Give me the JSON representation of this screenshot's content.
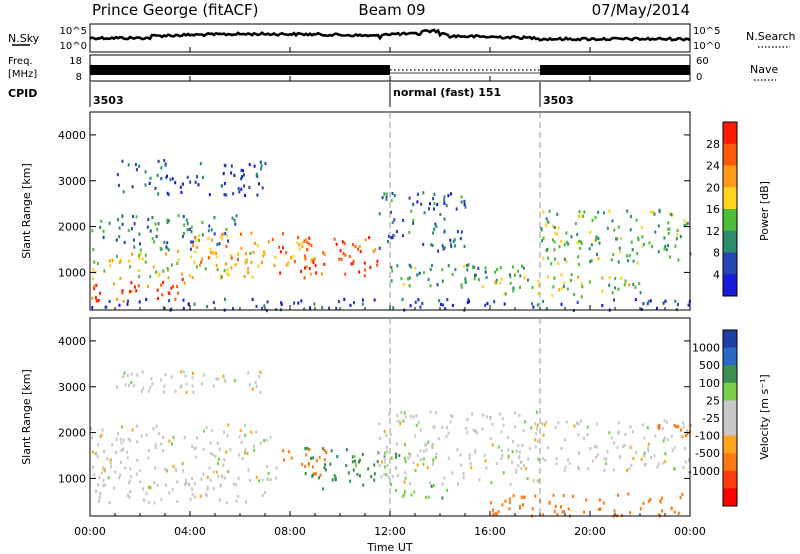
{
  "header": {
    "station": "Prince George (fitACF)",
    "beam": "Beam 09",
    "date": "07/May/2014"
  },
  "strip_labels": {
    "nsky": "N.Sky",
    "nsearch": "N.Search",
    "freq_line1": "Freq.",
    "freq_line2": "[MHz]",
    "nave": "Nave",
    "cpid": "CPID",
    "noise_top_exp": "10^5",
    "noise_bottom_exp": "10^0",
    "freq_top": "18",
    "freq_bottom": "8",
    "nave_top": "60",
    "nave_bottom": "0"
  },
  "cpid_segments": [
    {
      "label": "3503",
      "start_hour": 0,
      "end_hour": 12
    },
    {
      "label": "normal (fast) 151",
      "start_hour": 12,
      "end_hour": 18
    },
    {
      "label": "3503",
      "start_hour": 18,
      "end_hour": 24
    }
  ],
  "colors": {
    "power": [
      "#1a1adc",
      "#2846b4",
      "#2e8c6e",
      "#4fbd3a",
      "#ffd21e",
      "#ff9b14",
      "#ff5a0a",
      "#ff1a00"
    ],
    "velocity": [
      "#1f3ea8",
      "#2868c8",
      "#3d8f4e",
      "#7ad04a",
      "#c8c8c8",
      "#c8c8c8",
      "#ffa51e",
      "#ff7814",
      "#ff3c0a",
      "#ff0000"
    ]
  },
  "chart_data": [
    {
      "type": "heatmap",
      "title": "",
      "xlabel": "Time UT",
      "ylabel": "Slant Range [km]",
      "xlim": [
        0,
        24
      ],
      "ylim": [
        180,
        4500
      ],
      "x_ticks": [
        "00:00",
        "04:00",
        "08:00",
        "12:00",
        "16:00",
        "20:00",
        "00:00"
      ],
      "y_ticks": [
        1000,
        2000,
        3000,
        4000
      ],
      "grid": false,
      "colorbar": {
        "label": "Power [dB]",
        "min": 0,
        "max": 32,
        "tick_labels": [
          "4",
          "8",
          "12",
          "16",
          "20",
          "24",
          "28"
        ]
      },
      "bands": [
        {
          "t0": 0,
          "t1": 4,
          "r0": 400,
          "r1": 900,
          "value": 27
        },
        {
          "t0": 0,
          "t1": 7,
          "r0": 900,
          "r1": 1500,
          "value": 18
        },
        {
          "t0": 0,
          "t1": 6,
          "r0": 1500,
          "r1": 2300,
          "value": 10
        },
        {
          "t0": 4,
          "t1": 9,
          "r0": 1100,
          "r1": 1900,
          "value": 22
        },
        {
          "t0": 7.5,
          "t1": 11.5,
          "r0": 900,
          "r1": 1800,
          "value": 27
        },
        {
          "t0": 1,
          "t1": 7,
          "r0": 2700,
          "r1": 3500,
          "value": 6
        },
        {
          "t0": 11.5,
          "t1": 15,
          "r0": 1500,
          "r1": 2800,
          "value": 8
        },
        {
          "t0": 12,
          "t1": 18,
          "r0": 700,
          "r1": 1200,
          "value": 12
        },
        {
          "t0": 18,
          "t1": 24,
          "r0": 1200,
          "r1": 2400,
          "value": 13
        },
        {
          "t0": 16,
          "t1": 22,
          "r0": 500,
          "r1": 1000,
          "value": 16
        },
        {
          "t0": 0,
          "t1": 24,
          "r0": 200,
          "r1": 450,
          "value": 5
        }
      ]
    },
    {
      "type": "heatmap",
      "title": "",
      "xlabel": "Time UT",
      "ylabel": "Slant Range [km]",
      "xlim": [
        0,
        24
      ],
      "ylim": [
        180,
        4500
      ],
      "x_ticks": [
        "00:00",
        "04:00",
        "08:00",
        "12:00",
        "16:00",
        "20:00",
        "00:00"
      ],
      "y_ticks": [
        1000,
        2000,
        3000,
        4000
      ],
      "grid": false,
      "colorbar": {
        "label": "Velocity [m s⁻¹]",
        "tick_labels": [
          "1000",
          "500",
          "100",
          "25",
          "-25",
          "-100",
          "-500",
          "-1000"
        ]
      },
      "bands": [
        {
          "t0": 0,
          "t1": 7.5,
          "r0": 500,
          "r1": 2200,
          "value": 0
        },
        {
          "t0": 1,
          "t1": 7,
          "r0": 2900,
          "r1": 3400,
          "value": 0
        },
        {
          "t0": 7.5,
          "t1": 9.5,
          "r0": 1100,
          "r1": 1700,
          "value": -300
        },
        {
          "t0": 8.5,
          "t1": 11.5,
          "r0": 800,
          "r1": 1700,
          "value": 300
        },
        {
          "t0": 10.5,
          "t1": 13,
          "r0": 1200,
          "r1": 1600,
          "value": 100
        },
        {
          "t0": 12,
          "t1": 14.5,
          "r0": 600,
          "r1": 900,
          "value": 80
        },
        {
          "t0": 11.5,
          "t1": 18,
          "r0": 900,
          "r1": 2500,
          "value": 0
        },
        {
          "t0": 18,
          "t1": 24,
          "r0": 1200,
          "r1": 2300,
          "value": 0
        },
        {
          "t0": 22.5,
          "t1": 24,
          "r0": 1900,
          "r1": 2300,
          "value": -300
        },
        {
          "t0": 16,
          "t1": 24,
          "r0": 200,
          "r1": 700,
          "value": -150
        }
      ]
    }
  ]
}
